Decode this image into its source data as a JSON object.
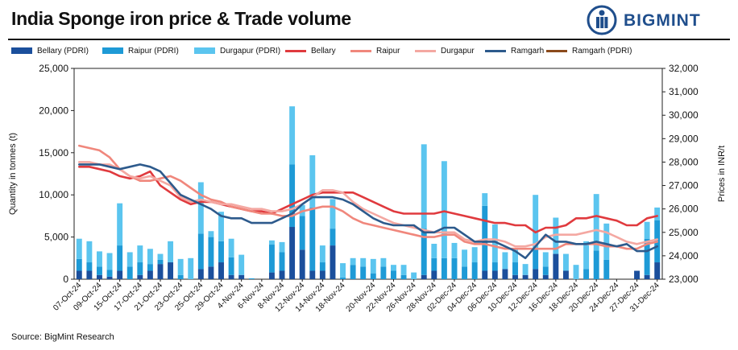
{
  "header": {
    "title": "India Sponge iron price & Trade volume",
    "brand": "BIGMINT"
  },
  "footer": {
    "source": "Source: BigMint Research"
  },
  "legend": [
    {
      "label": "Bellary (PDRI)",
      "kind": "bar",
      "color": "#1b4f9c"
    },
    {
      "label": "Raipur (PDRI)",
      "kind": "bar",
      "color": "#1e9ad6"
    },
    {
      "label": "Durgapur (PDRI)",
      "kind": "bar",
      "color": "#5bc5ef"
    },
    {
      "label": "Bellary",
      "kind": "line",
      "color": "#e03a3e"
    },
    {
      "label": "Raipur",
      "kind": "line",
      "color": "#f0877c"
    },
    {
      "label": "Durgapur",
      "kind": "line",
      "color": "#f4a8a2"
    },
    {
      "label": "Ramgarh",
      "kind": "line",
      "color": "#2d5a8c"
    },
    {
      "label": "Ramgarh (PDRI)",
      "kind": "line",
      "color": "#8b4a1c"
    }
  ],
  "chart_data": {
    "type": "bar",
    "title": "India Sponge iron price & Trade volume",
    "ylabel": "Quantity in tonnes (t)",
    "y2label": "Prices in INR/t",
    "ylim": [
      0,
      25000
    ],
    "y2lim": [
      23000,
      32000
    ],
    "yticks": [
      "0",
      "5,000",
      "10,000",
      "15,000",
      "20,000",
      "25,000"
    ],
    "y2ticks": [
      "23,000",
      "24,000",
      "25,000",
      "26,000",
      "27,000",
      "28,000",
      "29,000",
      "30,000",
      "31,000",
      "32,000"
    ],
    "x_tick_labels": [
      "07-Oct-24",
      "09-Oct-24",
      "15-Oct-24",
      "17-Oct-24",
      "21-Oct-24",
      "23-Oct-24",
      "25-Oct-24",
      "29-Oct-24",
      "4-Nov-24",
      "6-Nov-24",
      "8-Nov-24",
      "12-Nov-24",
      "14-Nov-24",
      "18-Nov-24",
      "20-Nov-24",
      "22-Nov-24",
      "26-Nov-24",
      "28-Nov-24",
      "02-Dec-24",
      "04-Dec-24",
      "06-Dec-24",
      "10-Dec-24",
      "12-Dec-24",
      "16-Dec-24",
      "18-Dec-24",
      "20-Dec-24",
      "24-Dec-24",
      "27-Dec-24",
      "31-Dec-24"
    ],
    "n_points": 58,
    "series": [
      {
        "name": "Bellary (PDRI)",
        "type": "bar",
        "axis": "left",
        "values": [
          1000,
          1000,
          500,
          300,
          1000,
          0,
          500,
          1000,
          1800,
          2000,
          0,
          0,
          1200,
          1500,
          2000,
          500,
          500,
          0,
          0,
          800,
          1000,
          6200,
          3500,
          1000,
          1000,
          4000,
          0,
          0,
          0,
          0,
          0,
          0,
          0,
          0,
          500,
          1000,
          0,
          0,
          0,
          0,
          1000,
          1000,
          1200,
          500,
          500,
          1200,
          500,
          3000,
          1000,
          0,
          0,
          0,
          0,
          0,
          0,
          1000,
          500,
          2000
        ]
      },
      {
        "name": "Raipur (PDRI)",
        "type": "bar",
        "axis": "left",
        "values": [
          1400,
          1000,
          1000,
          800,
          3000,
          1500,
          1500,
          800,
          500,
          0,
          500,
          0,
          4200,
          3500,
          2500,
          2100,
          0,
          100,
          0,
          3300,
          2200,
          7400,
          4000,
          7500,
          1000,
          2000,
          200,
          1700,
          1500,
          700,
          1500,
          1000,
          500,
          0,
          5500,
          1500,
          2500,
          2500,
          1500,
          2000,
          7700,
          1000,
          0,
          1500,
          0,
          2300,
          1000,
          0,
          0,
          0,
          1200,
          3400,
          2300,
          0,
          0,
          0,
          4300,
          5000
        ]
      },
      {
        "name": "Durgapur (PDRI)",
        "type": "bar",
        "axis": "left",
        "values": [
          2400,
          2500,
          1800,
          2000,
          5000,
          1700,
          2000,
          1800,
          700,
          2500,
          1900,
          2500,
          6100,
          700,
          3500,
          2200,
          2400,
          0,
          0,
          500,
          1200,
          6900,
          1300,
          6200,
          2000,
          3500,
          1700,
          800,
          1000,
          1700,
          1000,
          700,
          1200,
          800,
          10000,
          1700,
          11500,
          1800,
          2000,
          1800,
          1500,
          4500,
          2000,
          1700,
          1300,
          6500,
          1700,
          4300,
          2000,
          1700,
          3300,
          6700,
          4300,
          0,
          0,
          0,
          2000,
          1500
        ]
      },
      {
        "name": "Bellary",
        "type": "line",
        "axis": "right",
        "values": [
          27800,
          27800,
          27700,
          27600,
          27400,
          27300,
          27400,
          27600,
          27000,
          26700,
          26400,
          26200,
          26300,
          26300,
          26200,
          26100,
          26000,
          25900,
          25900,
          25800,
          26000,
          26200,
          26400,
          26600,
          26700,
          26700,
          26700,
          26700,
          26500,
          26300,
          26100,
          25900,
          25800,
          25800,
          25800,
          25800,
          25900,
          25800,
          25700,
          25600,
          25500,
          25400,
          25400,
          25300,
          25300,
          25000,
          25200,
          25200,
          25300,
          25600,
          25600,
          25700,
          25600,
          25500,
          25300,
          25300,
          25600,
          25700
        ]
      },
      {
        "name": "Raipur",
        "type": "line",
        "axis": "right",
        "values": [
          28700,
          28600,
          28500,
          28200,
          27700,
          27400,
          27200,
          27200,
          27300,
          27400,
          27200,
          26900,
          26600,
          26400,
          26300,
          26100,
          26000,
          25900,
          25800,
          25800,
          25700,
          25700,
          25900,
          26000,
          26100,
          26100,
          25900,
          25600,
          25400,
          25300,
          25200,
          25100,
          25000,
          24900,
          24800,
          24800,
          24900,
          24900,
          24600,
          24500,
          24500,
          24400,
          24300,
          24300,
          24300,
          24300,
          24300,
          24300,
          24500,
          24500,
          24500,
          24500,
          24400,
          24400,
          24300,
          24300,
          24500,
          24600
        ]
      },
      {
        "name": "Durgapur",
        "type": "line",
        "axis": "right",
        "values": [
          28000,
          28000,
          27900,
          27900,
          27700,
          27400,
          27300,
          27400,
          27200,
          27000,
          26500,
          26300,
          26400,
          26300,
          26200,
          26200,
          26100,
          26000,
          26000,
          25900,
          25900,
          26000,
          26200,
          26500,
          26800,
          26800,
          26700,
          26300,
          26000,
          25800,
          25600,
          25400,
          25300,
          25200,
          25100,
          25000,
          25000,
          25000,
          24700,
          24600,
          24700,
          24700,
          24600,
          24400,
          24400,
          24500,
          24800,
          24900,
          24900,
          24900,
          25000,
          25100,
          25000,
          24800,
          24600,
          24500,
          24600,
          24700
        ]
      },
      {
        "name": "Ramgarh",
        "type": "line",
        "axis": "right",
        "values": [
          27900,
          27900,
          27900,
          27800,
          27700,
          27800,
          27900,
          27800,
          27600,
          27100,
          26600,
          26400,
          26200,
          26000,
          25700,
          25600,
          25600,
          25400,
          25400,
          25400,
          25600,
          25800,
          26200,
          26500,
          26500,
          26500,
          26400,
          26200,
          25900,
          25600,
          25400,
          25300,
          25300,
          25300,
          25000,
          25000,
          25200,
          25200,
          24900,
          24600,
          24600,
          24600,
          24400,
          24200,
          23900,
          24400,
          24900,
          24600,
          24600,
          24500,
          24500,
          24600,
          24500,
          24400,
          24500,
          24200,
          24200,
          24400
        ]
      },
      {
        "name": "Ramgarh (PDRI)",
        "type": "line",
        "axis": "right",
        "values": [
          27900,
          27900,
          27900,
          27800,
          27700,
          27800,
          27900,
          27800,
          27600,
          27100,
          26600,
          26400,
          26200,
          26000,
          25700,
          25600,
          25600,
          25400,
          25400,
          25400,
          25600,
          25800,
          26200,
          26500,
          26500,
          26500,
          26400,
          26200,
          25900,
          25600,
          25400,
          25300,
          25300,
          25300,
          25000,
          25000,
          25200,
          25200,
          24900,
          24600,
          24600,
          24600,
          24400,
          24200,
          23900,
          24400,
          24900,
          24600,
          24600,
          24500,
          24500,
          24600,
          24500,
          24400,
          24500,
          24200,
          24200,
          24400
        ]
      }
    ]
  }
}
